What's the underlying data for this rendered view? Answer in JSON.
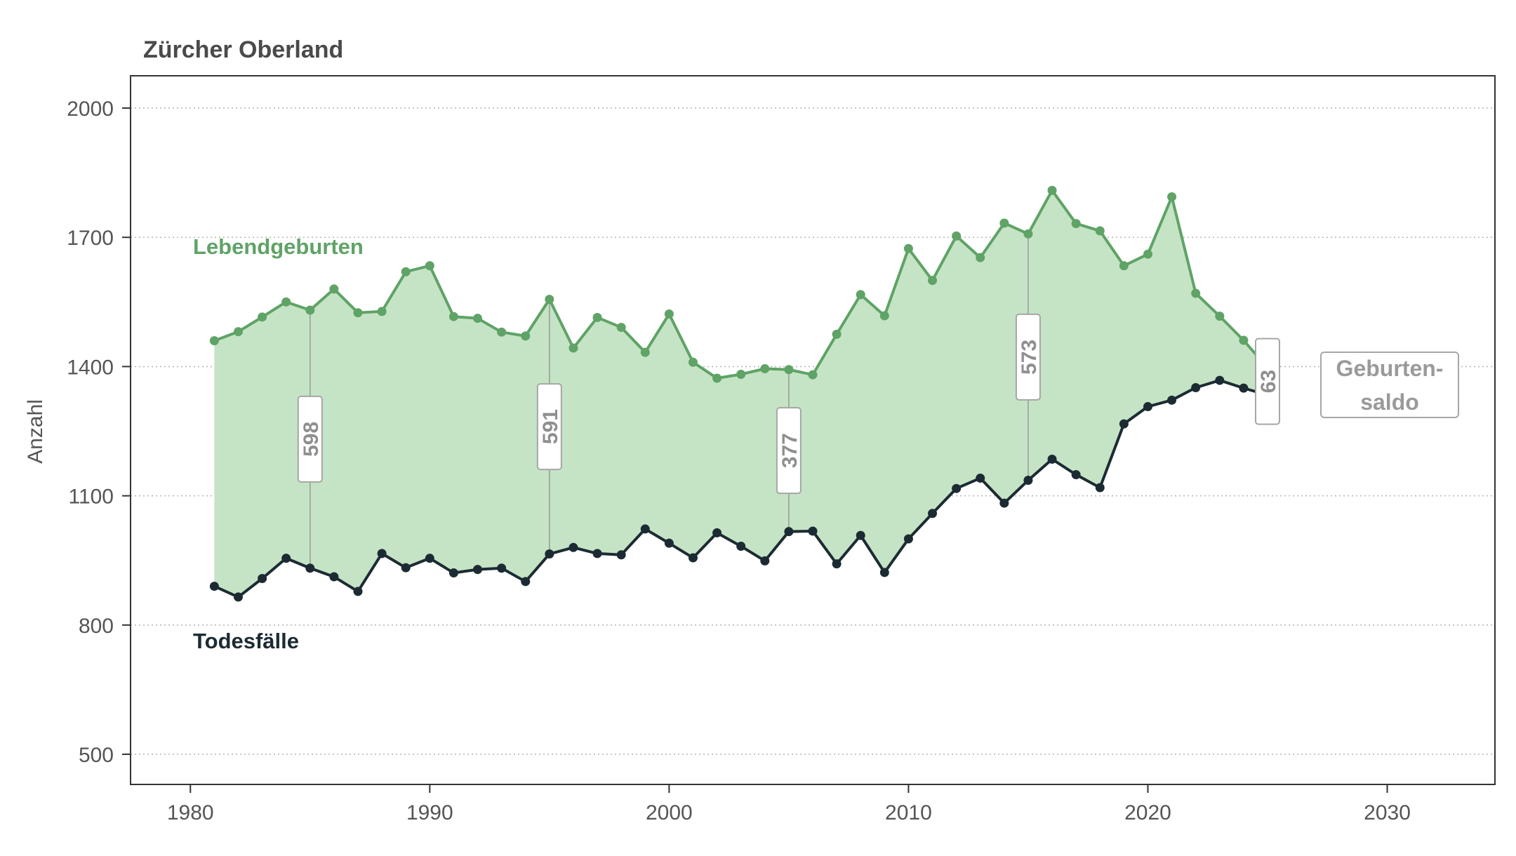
{
  "chart_data": {
    "type": "line",
    "title": "Zürcher Oberland",
    "xlabel": "",
    "ylabel": "Anzahl",
    "xlim": [
      1977.5,
      2034.5
    ],
    "ylim": [
      430,
      2075
    ],
    "x_ticks": [
      1980,
      1990,
      2000,
      2010,
      2020,
      2030
    ],
    "y_ticks": [
      500,
      800,
      1100,
      1400,
      1700,
      2000
    ],
    "grid": "horizontal dotted",
    "x": [
      1981,
      1982,
      1983,
      1984,
      1985,
      1986,
      1987,
      1988,
      1989,
      1990,
      1991,
      1992,
      1993,
      1994,
      1995,
      1996,
      1997,
      1998,
      1999,
      2000,
      2001,
      2002,
      2003,
      2004,
      2005,
      2006,
      2007,
      2008,
      2009,
      2010,
      2011,
      2012,
      2013,
      2014,
      2015,
      2016,
      2017,
      2018,
      2019,
      2020,
      2021,
      2022,
      2023,
      2024,
      2025
    ],
    "series": [
      {
        "name": "Lebendgeburten",
        "color": "#5fa366",
        "values": [
          1460,
          1481,
          1515,
          1550,
          1531,
          1580,
          1525,
          1528,
          1620,
          1634,
          1516,
          1512,
          1480,
          1471,
          1556,
          1443,
          1514,
          1491,
          1433,
          1522,
          1410,
          1373,
          1382,
          1395,
          1393,
          1381,
          1475,
          1567,
          1518,
          1674,
          1600,
          1703,
          1653,
          1733,
          1708,
          1809,
          1732,
          1715,
          1634,
          1661,
          1794,
          1570,
          1517,
          1461,
          1397
        ]
      },
      {
        "name": "Todesfälle",
        "color": "#1c2b33",
        "values": [
          890,
          865,
          908,
          955,
          932,
          912,
          878,
          966,
          933,
          955,
          921,
          929,
          932,
          901,
          965,
          980,
          966,
          963,
          1023,
          990,
          956,
          1014,
          983,
          949,
          1017,
          1018,
          942,
          1008,
          922,
          1000,
          1059,
          1117,
          1141,
          1083,
          1136,
          1185,
          1149,
          1119,
          1267,
          1307,
          1322,
          1351,
          1368,
          1350,
          1334
        ]
      }
    ],
    "annotations": [
      {
        "x": 1985,
        "label": "598"
      },
      {
        "x": 1995,
        "label": "591"
      },
      {
        "x": 2005,
        "label": "377"
      },
      {
        "x": 2015,
        "label": "573"
      },
      {
        "x": 2025,
        "label": "63"
      }
    ],
    "legend_box": {
      "line1": "Geburten-",
      "line2": "saldo"
    },
    "fill_color": "#c5e4c5"
  }
}
